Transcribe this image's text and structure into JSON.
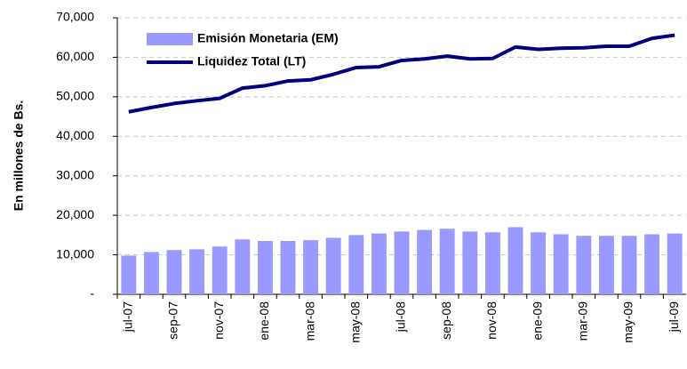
{
  "chart_data": {
    "type": "bar_line",
    "y_axis_label": "En millones de Bs.",
    "categories": [
      "jul-07",
      null,
      "sep-07",
      null,
      "nov-07",
      null,
      "ene-08",
      null,
      "mar-08",
      null,
      "may-08",
      null,
      "jul-08",
      null,
      "sep-08",
      null,
      "nov-08",
      null,
      "ene-09",
      null,
      "mar-09",
      null,
      "may-09",
      null,
      "jul-09"
    ],
    "series": [
      {
        "name": "Emisión Monetaria (EM)",
        "type": "bar",
        "color": "#9999ff",
        "values": [
          9800,
          10700,
          11200,
          11400,
          12100,
          13900,
          13500,
          13500,
          13700,
          14300,
          15000,
          15400,
          15900,
          16300,
          16600,
          15900,
          15700,
          17000,
          15700,
          15200,
          14800,
          14800,
          14800,
          15200,
          15400
        ]
      },
      {
        "name": "Liquidez Total (LT)",
        "type": "line",
        "color": "#000080",
        "values": [
          46200,
          47300,
          48300,
          49000,
          49600,
          52200,
          52800,
          54000,
          54300,
          55700,
          57400,
          57600,
          59200,
          59600,
          60300,
          59600,
          59700,
          62600,
          62000,
          62300,
          62400,
          62800,
          62800,
          64800,
          65600
        ]
      }
    ],
    "ylim": [
      0,
      70000
    ],
    "yticks": [
      {
        "value": 0,
        "label": "-"
      },
      {
        "value": 10000,
        "label": "10,000"
      },
      {
        "value": 20000,
        "label": "20,000"
      },
      {
        "value": 30000,
        "label": "30,000"
      },
      {
        "value": 40000,
        "label": "40,000"
      },
      {
        "value": 50000,
        "label": "50,000"
      },
      {
        "value": 60000,
        "label": "60,000"
      },
      {
        "value": 70000,
        "label": "70,000"
      }
    ],
    "grid": true
  }
}
